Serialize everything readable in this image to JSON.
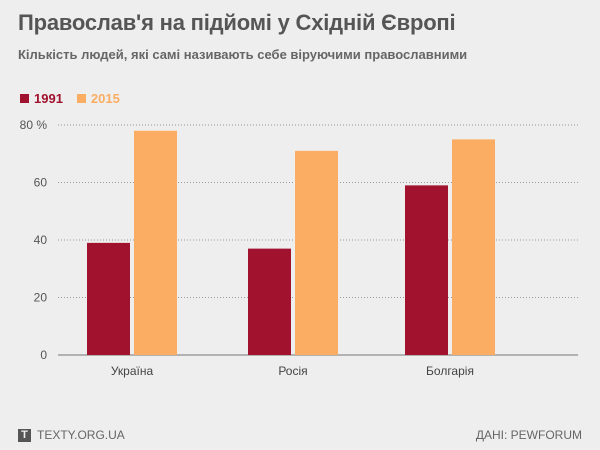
{
  "chart_data": {
    "type": "bar",
    "title": "Православ'я на підйомі у Східній Європі",
    "subtitle": "Кількість людей, які самі називають себе віруючими православними",
    "categories": [
      "Україна",
      "Росія",
      "Болгарія"
    ],
    "series": [
      {
        "name": "1991",
        "color": "#a0122e",
        "values": [
          39,
          37,
          59
        ]
      },
      {
        "name": "2015",
        "color": "#fbad63",
        "values": [
          78,
          71,
          75
        ]
      }
    ],
    "ylim": [
      0,
      80
    ],
    "yticks": [
      0,
      20,
      40,
      60,
      80
    ],
    "ytick_labels": [
      "0",
      "20",
      "40",
      "60",
      "80 %"
    ],
    "grid": true,
    "legend": "top-left"
  },
  "footer": {
    "logo_letter": "T",
    "brand": "TEXTY.ORG.UA",
    "source": "ДАНІ: PEWFORUM"
  }
}
